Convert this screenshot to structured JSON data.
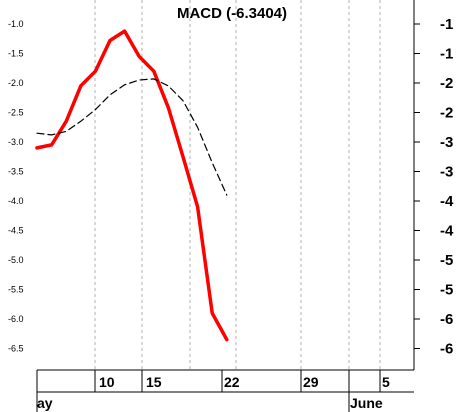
{
  "chart_data": {
    "type": "line",
    "title": "MACD (-6.3404)",
    "ylim": [
      -6.8,
      -0.8
    ],
    "left_ticks": [
      "-1.0",
      "-1.5",
      "-2.0",
      "-2.5",
      "-3.0",
      "-3.5",
      "-4.0",
      "-4.5",
      "-5.0",
      "-5.5",
      "-6.0",
      "-6.5"
    ],
    "right_ticks": [
      "-1",
      "-1",
      "-2",
      "-2",
      "-3",
      "-3",
      "-4",
      "-4",
      "-5",
      "-5",
      "-6",
      "-6"
    ],
    "day_ticks": [
      "10",
      "15",
      "22",
      "29",
      "5"
    ],
    "month_labels": [
      "ay",
      "June"
    ],
    "grid": true,
    "series": [
      {
        "color": "#ff0000",
        "style": "solid",
        "values": [
          -3.1,
          -3.05,
          -2.65,
          -2.05,
          -1.8,
          -1.28,
          -1.12,
          -1.55,
          -1.8,
          -2.42,
          -3.25,
          -4.1,
          -5.9,
          -6.35
        ]
      },
      {
        "color": "#000000",
        "style": "dashed",
        "values": [
          -2.85,
          -2.88,
          -2.82,
          -2.65,
          -2.45,
          -2.2,
          -2.03,
          -1.95,
          -1.93,
          -2.05,
          -2.3,
          -2.75,
          -3.35,
          -3.9
        ]
      }
    ]
  }
}
